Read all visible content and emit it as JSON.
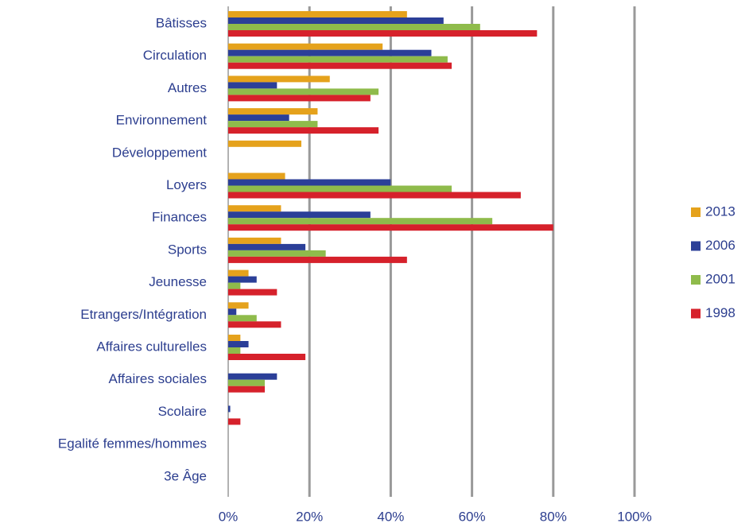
{
  "chart_data": {
    "type": "hbar",
    "categories": [
      "Bâtisses",
      "Circulation",
      "Autres",
      "Environnement",
      "Développement",
      "Loyers",
      "Finances",
      "Sports",
      "Jeunesse",
      "Etrangers/Intégration",
      "Affaires culturelles",
      "Affaires sociales",
      "Scolaire",
      "Egalité femmes/hommes",
      "3e Âge"
    ],
    "series": [
      {
        "name": "2013",
        "color": "#e5a21c",
        "values": [
          44,
          38,
          25,
          22,
          18,
          14,
          13,
          13,
          5,
          5,
          3,
          null,
          null,
          null,
          null
        ]
      },
      {
        "name": "2006",
        "color": "#2b3f98",
        "values": [
          53,
          50,
          12,
          15,
          null,
          40,
          35,
          19,
          7,
          2,
          5,
          12,
          0.5,
          null,
          null
        ]
      },
      {
        "name": "2001",
        "color": "#8fbb4b",
        "values": [
          62,
          54,
          37,
          22,
          null,
          55,
          65,
          24,
          3,
          7,
          3,
          9,
          null,
          null,
          null
        ]
      },
      {
        "name": "1998",
        "color": "#d6212b",
        "values": [
          76,
          55,
          35,
          37,
          null,
          72,
          80,
          44,
          12,
          13,
          19,
          9,
          3,
          null,
          null
        ]
      }
    ],
    "xlim": [
      0,
      100
    ],
    "xticks": [
      {
        "value": 0,
        "label": "0%"
      },
      {
        "value": 20,
        "label": "20%"
      },
      {
        "value": 40,
        "label": "40%"
      },
      {
        "value": 60,
        "label": "60%"
      },
      {
        "value": 80,
        "label": "80%"
      },
      {
        "value": 100,
        "label": "100%"
      }
    ],
    "grid": true,
    "legend": "right"
  }
}
